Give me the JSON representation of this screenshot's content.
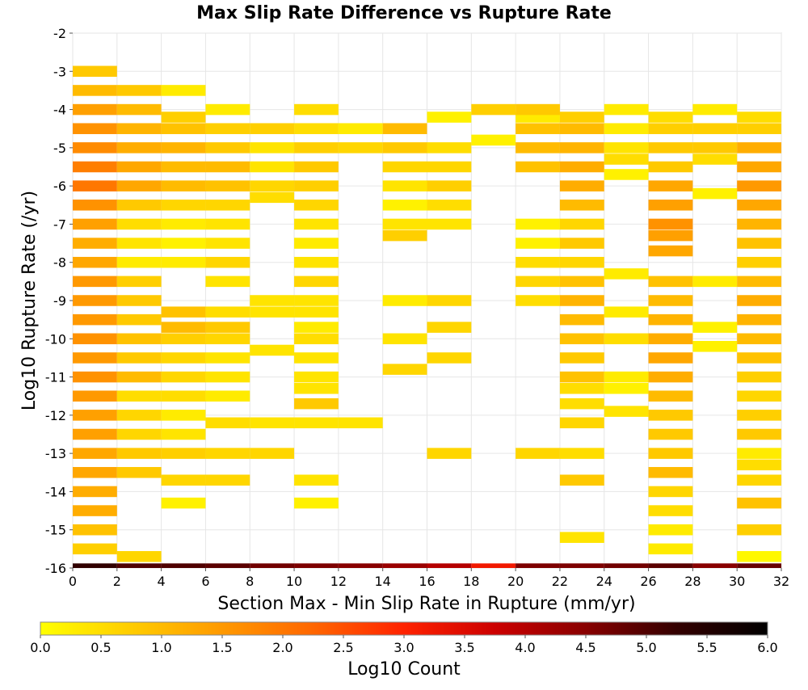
{
  "chart_data": {
    "type": "heatmap",
    "title": "Max Slip Rate Difference vs Rupture Rate",
    "xlabel": "Section Max - Min Slip Rate in Rupture (mm/yr)",
    "ylabel": "Log10 Rupture Rate (/yr)",
    "xlim": [
      0,
      32
    ],
    "ylim": [
      -16,
      -2
    ],
    "x_ticks": [
      "0",
      "2",
      "4",
      "6",
      "8",
      "10",
      "12",
      "14",
      "16",
      "18",
      "20",
      "22",
      "24",
      "26",
      "28",
      "30",
      "32"
    ],
    "y_ticks": [
      "-2",
      "-3",
      "-4",
      "-5",
      "-6",
      "-7",
      "-8",
      "-9",
      "-10",
      "-11",
      "-12",
      "-13",
      "-14",
      "-15",
      "-16"
    ],
    "x_bin_width": 2,
    "y_bin_height": 0.286,
    "grid": true,
    "colorbar": {
      "label": "Log10 Count",
      "range": [
        0,
        6
      ],
      "ticks": [
        "0.0",
        "0.5",
        "1.0",
        "1.5",
        "2.0",
        "2.5",
        "3.0",
        "3.5",
        "4.0",
        "4.5",
        "5.0",
        "5.5",
        "6.0"
      ],
      "colors": [
        "#ffff00",
        "#ffcc00",
        "#ff9900",
        "#ff6600",
        "#ff2200",
        "#cc0000",
        "#880000",
        "#330000",
        "#000000"
      ]
    },
    "columns": [
      {
        "x": 0,
        "cells": [
          [
            -16,
            5.3
          ],
          [
            -15.5,
            0.7
          ],
          [
            -15,
            0.9
          ],
          [
            -14.5,
            1.2
          ],
          [
            -14,
            1.2
          ],
          [
            -13.5,
            1.3
          ],
          [
            -13,
            1.3
          ],
          [
            -12.5,
            1.4
          ],
          [
            -12,
            1.4
          ],
          [
            -11.5,
            1.5
          ],
          [
            -11,
            1.6
          ],
          [
            -10.5,
            1.5
          ],
          [
            -10,
            1.6
          ],
          [
            -9.5,
            1.5
          ],
          [
            -9,
            1.5
          ],
          [
            -8.5,
            1.5
          ],
          [
            -8,
            1.3
          ],
          [
            -7.5,
            1.2
          ],
          [
            -7,
            1.4
          ],
          [
            -6.5,
            1.6
          ],
          [
            -6,
            2.0
          ],
          [
            -5.5,
            1.9
          ],
          [
            -5,
            1.7
          ],
          [
            -4.5,
            1.6
          ],
          [
            -4,
            1.4
          ],
          [
            -3.5,
            1.0
          ],
          [
            -3,
            0.8
          ]
        ]
      },
      {
        "x": 2,
        "cells": [
          [
            -16,
            5.0
          ],
          [
            -15.7,
            0.6
          ],
          [
            -13.5,
            0.8
          ],
          [
            -13,
            0.8
          ],
          [
            -12.5,
            0.6
          ],
          [
            -12,
            0.6
          ],
          [
            -11.5,
            0.5
          ],
          [
            -11,
            1.0
          ],
          [
            -10.5,
            0.8
          ],
          [
            -10,
            0.9
          ],
          [
            -9.5,
            0.8
          ],
          [
            -9,
            0.8
          ],
          [
            -8.5,
            0.7
          ],
          [
            -8,
            0.3
          ],
          [
            -7.5,
            0.4
          ],
          [
            -7,
            0.5
          ],
          [
            -6.5,
            0.8
          ],
          [
            -6,
            1.3
          ],
          [
            -5.5,
            1.3
          ],
          [
            -5,
            1.2
          ],
          [
            -4.5,
            1.1
          ],
          [
            -4,
            1.0
          ],
          [
            -3.5,
            0.8
          ]
        ]
      },
      {
        "x": 4,
        "cells": [
          [
            -16,
            5.0
          ],
          [
            -14.3,
            0.2
          ],
          [
            -13.7,
            0.6
          ],
          [
            -13,
            0.7
          ],
          [
            -12.5,
            0.4
          ],
          [
            -12,
            0.3
          ],
          [
            -11.5,
            0.5
          ],
          [
            -11,
            0.6
          ],
          [
            -10.5,
            0.6
          ],
          [
            -10,
            0.7
          ],
          [
            -9.7,
            1.0
          ],
          [
            -9.3,
            0.9
          ],
          [
            -8,
            0.3
          ],
          [
            -7.5,
            0.2
          ],
          [
            -7,
            0.3
          ],
          [
            -6.5,
            0.6
          ],
          [
            -6,
            1.0
          ],
          [
            -5.5,
            1.0
          ],
          [
            -5,
            1.1
          ],
          [
            -4.5,
            0.9
          ],
          [
            -4.2,
            0.7
          ],
          [
            -3.5,
            0.3
          ]
        ]
      },
      {
        "x": 6,
        "cells": [
          [
            -16,
            4.9
          ],
          [
            -13.7,
            0.6
          ],
          [
            -13,
            0.6
          ],
          [
            -12.2,
            0.5
          ],
          [
            -11.5,
            0.3
          ],
          [
            -11,
            0.4
          ],
          [
            -10.5,
            0.4
          ],
          [
            -10,
            0.6
          ],
          [
            -9.7,
            0.8
          ],
          [
            -9.3,
            0.5
          ],
          [
            -8.5,
            0.4
          ],
          [
            -8,
            0.6
          ],
          [
            -7.5,
            0.4
          ],
          [
            -7,
            0.4
          ],
          [
            -6.5,
            0.6
          ],
          [
            -6,
            0.9
          ],
          [
            -5.5,
            1.0
          ],
          [
            -5,
            0.8
          ],
          [
            -4.5,
            0.7
          ],
          [
            -4,
            0.3
          ]
        ]
      },
      {
        "x": 8,
        "cells": [
          [
            -16,
            4.7
          ],
          [
            -13,
            0.6
          ],
          [
            -12.2,
            0.4
          ],
          [
            -10.3,
            0.4
          ],
          [
            -9.3,
            0.4
          ],
          [
            -9,
            0.4
          ],
          [
            -6.3,
            0.5
          ],
          [
            -6,
            0.6
          ],
          [
            -5.5,
            0.4
          ],
          [
            -5,
            0.4
          ],
          [
            -4.5,
            0.7
          ]
        ]
      },
      {
        "x": 10,
        "cells": [
          [
            -16,
            4.6
          ],
          [
            -14.3,
            0.2
          ],
          [
            -13.7,
            0.4
          ],
          [
            -12.2,
            0.4
          ],
          [
            -11.7,
            0.8
          ],
          [
            -11.3,
            0.4
          ],
          [
            -11,
            0.4
          ],
          [
            -10.5,
            0.4
          ],
          [
            -10,
            0.5
          ],
          [
            -9.7,
            0.3
          ],
          [
            -9.3,
            0.4
          ],
          [
            -9,
            0.4
          ],
          [
            -8.5,
            0.6
          ],
          [
            -8,
            0.4
          ],
          [
            -7.5,
            0.3
          ],
          [
            -7,
            0.4
          ],
          [
            -6.5,
            0.6
          ],
          [
            -6,
            0.7
          ],
          [
            -5.5,
            0.8
          ],
          [
            -5,
            0.7
          ],
          [
            -4.5,
            0.5
          ],
          [
            -4,
            0.5
          ]
        ]
      },
      {
        "x": 12,
        "cells": [
          [
            -16,
            4.5
          ],
          [
            -12.2,
            0.4
          ],
          [
            -5,
            0.6
          ],
          [
            -4.5,
            0.3
          ]
        ]
      },
      {
        "x": 14,
        "cells": [
          [
            -16,
            4.3
          ],
          [
            -10.8,
            0.6
          ],
          [
            -10,
            0.4
          ],
          [
            -9,
            0.3
          ],
          [
            -7.3,
            0.7
          ],
          [
            -7,
            0.4
          ],
          [
            -6.5,
            0.2
          ],
          [
            -6,
            0.4
          ],
          [
            -5.5,
            0.6
          ],
          [
            -5,
            0.8
          ],
          [
            -4.5,
            1.0
          ]
        ]
      },
      {
        "x": 16,
        "cells": [
          [
            -16,
            4.0
          ],
          [
            -13,
            0.6
          ],
          [
            -10.5,
            0.6
          ],
          [
            -9.7,
            0.6
          ],
          [
            -9,
            0.6
          ],
          [
            -7,
            0.4
          ],
          [
            -6.5,
            0.5
          ],
          [
            -6,
            0.7
          ],
          [
            -5.5,
            0.6
          ],
          [
            -5,
            0.5
          ],
          [
            -4.2,
            0.2
          ]
        ]
      },
      {
        "x": 18,
        "cells": [
          [
            -16,
            3.2
          ],
          [
            -4.8,
            0.2
          ],
          [
            -4,
            0.7
          ]
        ]
      },
      {
        "x": 20,
        "cells": [
          [
            -16,
            4.6
          ],
          [
            -13,
            0.6
          ],
          [
            -9,
            0.5
          ],
          [
            -8.5,
            0.6
          ],
          [
            -8,
            0.5
          ],
          [
            -7.5,
            0.2
          ],
          [
            -7,
            0.2
          ],
          [
            -5.5,
            0.9
          ],
          [
            -5,
            1.0
          ],
          [
            -4.5,
            0.9
          ],
          [
            -4.2,
            0.3
          ],
          [
            -4,
            0.8
          ]
        ]
      },
      {
        "x": 22,
        "cells": [
          [
            -16,
            4.6
          ],
          [
            -15.2,
            0.4
          ],
          [
            -13.7,
            0.8
          ],
          [
            -13,
            0.5
          ],
          [
            -12.2,
            0.6
          ],
          [
            -11.7,
            0.5
          ],
          [
            -11.3,
            0.5
          ],
          [
            -11,
            0.9
          ],
          [
            -10.5,
            0.8
          ],
          [
            -10,
            0.9
          ],
          [
            -9.5,
            1.0
          ],
          [
            -9,
            1.1
          ],
          [
            -8.5,
            0.9
          ],
          [
            -8,
            0.6
          ],
          [
            -7.5,
            0.8
          ],
          [
            -7,
            0.6
          ],
          [
            -6.5,
            1.0
          ],
          [
            -6,
            1.2
          ],
          [
            -5.5,
            1.2
          ],
          [
            -5,
            1.1
          ],
          [
            -4.5,
            1.0
          ],
          [
            -4.2,
            0.7
          ]
        ]
      },
      {
        "x": 24,
        "cells": [
          [
            -16,
            4.7
          ],
          [
            -11.9,
            0.4
          ],
          [
            -11.3,
            0.2
          ],
          [
            -11,
            0.3
          ],
          [
            -10,
            0.5
          ],
          [
            -9.3,
            0.3
          ],
          [
            -8.3,
            0.3
          ],
          [
            -5.7,
            0.2
          ],
          [
            -5.3,
            0.5
          ],
          [
            -5,
            0.4
          ],
          [
            -4.5,
            0.3
          ],
          [
            -4,
            0.3
          ]
        ]
      },
      {
        "x": 26,
        "cells": [
          [
            -16,
            4.9
          ],
          [
            -15.5,
            0.3
          ],
          [
            -15,
            0.3
          ],
          [
            -14.5,
            0.5
          ],
          [
            -14,
            0.6
          ],
          [
            -13.5,
            1.0
          ],
          [
            -13,
            0.8
          ],
          [
            -12.5,
            0.8
          ],
          [
            -12,
            0.8
          ],
          [
            -11.5,
            1.0
          ],
          [
            -11,
            1.2
          ],
          [
            -10.5,
            1.3
          ],
          [
            -10,
            1.2
          ],
          [
            -9.5,
            1.1
          ],
          [
            -9,
            1.0
          ],
          [
            -8.5,
            0.9
          ],
          [
            -7.7,
            1.3
          ],
          [
            -7.3,
            1.4
          ],
          [
            -7,
            1.6
          ],
          [
            -6.5,
            1.4
          ],
          [
            -6,
            1.3
          ],
          [
            -5.5,
            0.8
          ],
          [
            -5,
            0.8
          ],
          [
            -4.5,
            0.7
          ],
          [
            -4.2,
            0.5
          ]
        ]
      },
      {
        "x": 28,
        "cells": [
          [
            -16,
            4.5
          ],
          [
            -10.2,
            0.2
          ],
          [
            -9.7,
            0.2
          ],
          [
            -8.5,
            0.3
          ],
          [
            -6.2,
            0.2
          ],
          [
            -5.3,
            0.5
          ],
          [
            -5,
            0.8
          ],
          [
            -4.5,
            0.7
          ],
          [
            -4,
            0.3
          ]
        ]
      },
      {
        "x": 30,
        "cells": [
          [
            -16,
            4.8
          ],
          [
            -15.7,
            0.1
          ],
          [
            -15,
            0.7
          ],
          [
            -14.3,
            0.9
          ],
          [
            -13.7,
            0.6
          ],
          [
            -13.3,
            0.5
          ],
          [
            -13,
            0.3
          ],
          [
            -12.5,
            0.8
          ],
          [
            -12,
            0.7
          ],
          [
            -11.5,
            0.6
          ],
          [
            -11,
            0.7
          ],
          [
            -10.5,
            0.9
          ],
          [
            -10,
            1.0
          ],
          [
            -9.5,
            1.1
          ],
          [
            -9,
            1.2
          ],
          [
            -8.5,
            1.0
          ],
          [
            -8,
            0.7
          ],
          [
            -7.5,
            0.9
          ],
          [
            -7,
            1.1
          ],
          [
            -6.5,
            1.3
          ],
          [
            -6,
            1.5
          ],
          [
            -5.5,
            1.3
          ],
          [
            -5,
            1.2
          ],
          [
            -4.5,
            0.7
          ],
          [
            -4.2,
            0.5
          ]
        ]
      }
    ]
  }
}
